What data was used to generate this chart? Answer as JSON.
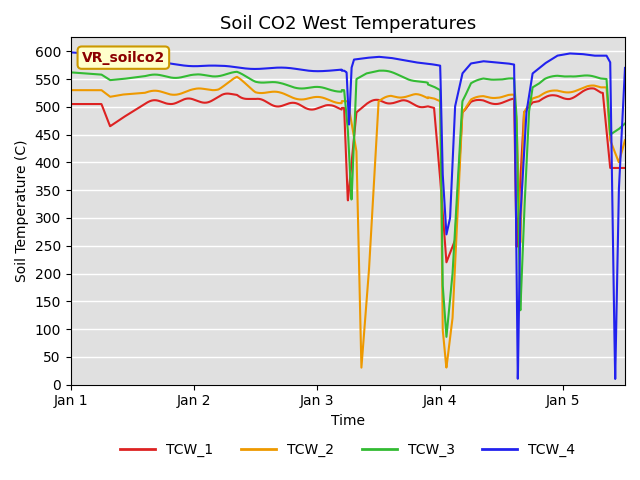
{
  "title": "Soil CO2 West Temperatures",
  "xlabel": "Time",
  "ylabel": "Soil Temperature (C)",
  "annotation_text": "VR_soilco2",
  "ylim": [
    0,
    625
  ],
  "yticks": [
    0,
    50,
    100,
    150,
    200,
    250,
    300,
    350,
    400,
    450,
    500,
    550,
    600
  ],
  "xtick_labels": [
    "Jan 1",
    "Jan 2",
    "Jan 3",
    "Jan 4",
    "Jan 5"
  ],
  "xtick_positions": [
    0,
    1,
    2,
    3,
    4
  ],
  "xlim": [
    0,
    4.5
  ],
  "legend_labels": [
    "TCW_1",
    "TCW_2",
    "TCW_3",
    "TCW_4"
  ],
  "colors": {
    "TCW_1": "#dd2222",
    "TCW_2": "#ee9900",
    "TCW_3": "#33bb33",
    "TCW_4": "#2222ee"
  },
  "background_color": "#e0e0e0",
  "annotation_bg": "#ffffcc",
  "annotation_border": "#cc9900",
  "linewidth": 1.5
}
